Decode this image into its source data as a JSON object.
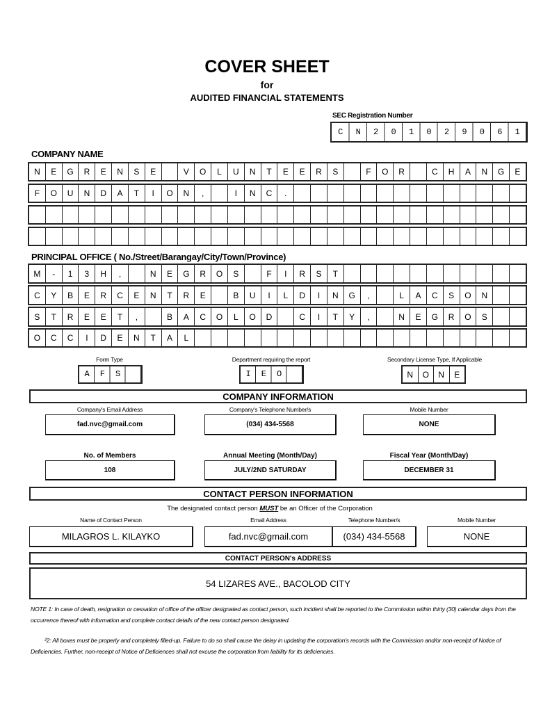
{
  "header": {
    "title": "COVER SHEET",
    "for": "for",
    "subtitle": "AUDITED FINANCIAL STATEMENTS"
  },
  "sec_registration": {
    "label": "SEC Registration Number",
    "value": "CN201029061"
  },
  "company_name": {
    "label": "COMPANY NAME",
    "rows": [
      "NEGRENSE VOLUNTEERS FOR CHANGE",
      "FOUNDATION, INC.",
      "",
      ""
    ]
  },
  "principal_office": {
    "label": "PRINCIPAL OFFICE ( No./Street/Barangay/City/Town/Province)",
    "rows": [
      "M-13H, NEGROS FIRST",
      "CYBERCENTRE BUILDING, LACSON",
      "STREET, BACOLOD CITY, NEGROS",
      "OCCIDENTAL"
    ]
  },
  "form_type": {
    "label": "Form Type",
    "value": "AFS"
  },
  "department": {
    "label": "Department requiring the report",
    "value": "IEO"
  },
  "secondary_license": {
    "label": "Secondary License Type, If Applicable",
    "value": "NONE"
  },
  "company_info": {
    "heading": "COMPANY INFORMATION",
    "email_label": "Company's Email Address",
    "email": "fad.nvc@gmail.com",
    "phone_label": "Company's Telephone Number/s",
    "phone": "(034) 434-5568",
    "mobile_label": "Mobile Number",
    "mobile": "NONE",
    "members_label": "No. of Members",
    "members": "108",
    "meeting_label": "Annual Meeting (Month/Day)",
    "meeting": "JULY/2ND SATURDAY",
    "fiscal_label": "Fiscal Year (Month/Day)",
    "fiscal": "DECEMBER 31"
  },
  "contact_info": {
    "heading": "CONTACT PERSON INFORMATION",
    "notice_pre": "The designated contact person ",
    "notice_must": "MUST",
    "notice_post": " be an Officer of the Corporation",
    "name_label": "Name of Contact Person",
    "name": "MILAGROS L. KILAYKO",
    "email_label": "Email Address",
    "email": "fad.nvc@gmail.com",
    "phone_label": "Telephone Number/s",
    "phone": "(034) 434-5568",
    "mobile_label": "Mobile Number",
    "mobile": "NONE",
    "address_heading": "CONTACT PERSON's ADDRESS",
    "address": "54 LIZARES AVE., BACOLOD CITY"
  },
  "notes": {
    "note1": "NOTE 1: In case of death, resignation or cessation of office of the officer designated as contact person, such incident shall be reported to the Commission within thirty (30) calendar days from the occurrence thereof with information and complete contact details of the new contact person designated.",
    "note2": "²2: All boxes must be properly and completely filled-up. Failure to do so shall cause the delay in updating the corporation's records with the Commission and/or non-receipt of Notice of Deficiencies. Further, non-receipt of Notice of Deficiences shall not excuse the corporation from liability for its deficiencies."
  }
}
